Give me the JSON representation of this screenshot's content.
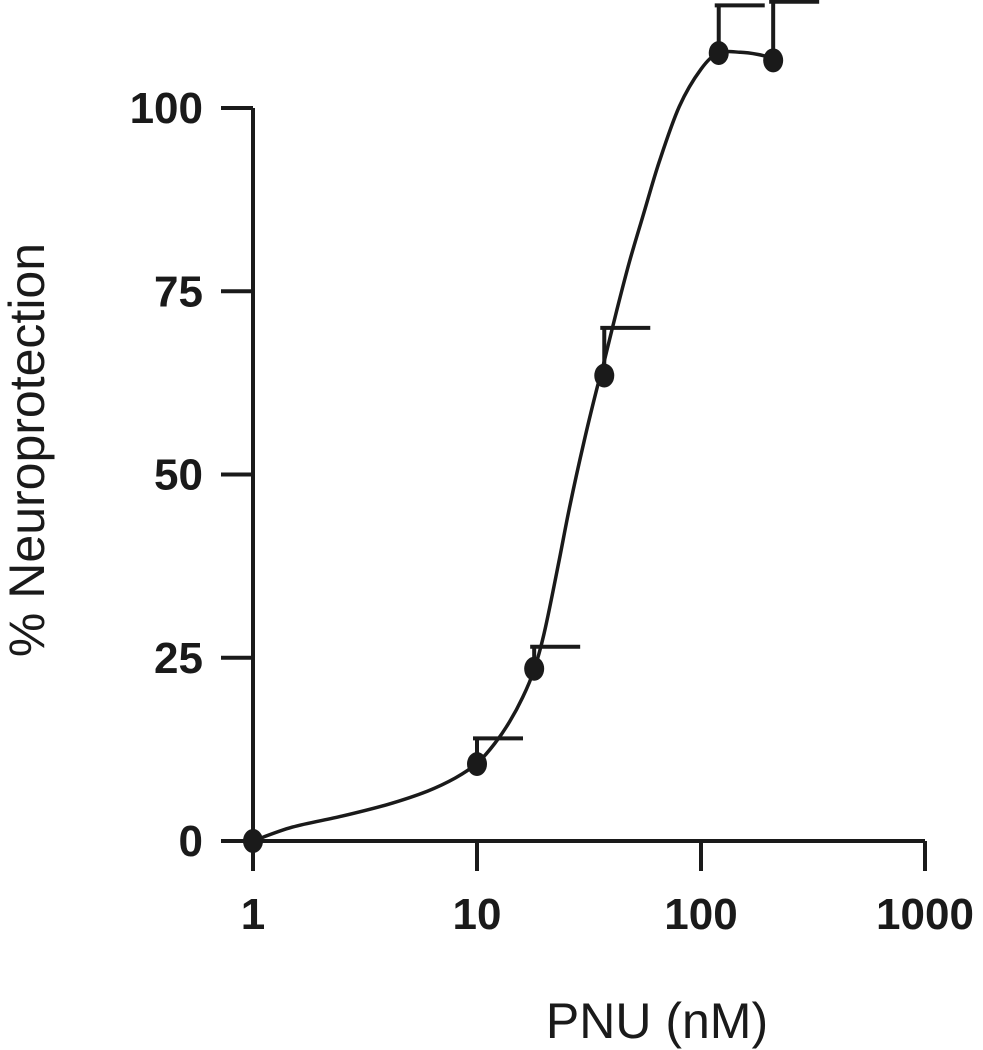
{
  "chart_data": {
    "type": "scatter",
    "xscale": "log",
    "xlim": [
      1,
      1000
    ],
    "ylim": [
      0,
      100
    ],
    "xlabel": "PNU (nM)",
    "ylabel": "% Neuroprotection",
    "xticks": [
      {
        "value": 1,
        "label": "1"
      },
      {
        "value": 10,
        "label": "10"
      },
      {
        "value": 100,
        "label": "100"
      },
      {
        "value": 1000,
        "label": "1000"
      }
    ],
    "yticks": [
      {
        "value": 0,
        "label": "0"
      },
      {
        "value": 25,
        "label": "25"
      },
      {
        "value": 50,
        "label": "50"
      },
      {
        "value": 75,
        "label": "75"
      },
      {
        "value": 100,
        "label": "100"
      }
    ],
    "points": [
      {
        "x": 1,
        "y": 0
      },
      {
        "x": 10,
        "y": 10.5,
        "err": 3.5
      },
      {
        "x": 18,
        "y": 23.5,
        "err": 3
      },
      {
        "x": 37,
        "y": 63.5,
        "err": 6.5
      },
      {
        "x": 120,
        "y": 107.5,
        "err": 6.5
      },
      {
        "x": 210,
        "y": 106.5,
        "err": 8
      }
    ],
    "fit_curve": [
      [
        1,
        0
      ],
      [
        1.5,
        1.9
      ],
      [
        2.5,
        3.4
      ],
      [
        4,
        5.0
      ],
      [
        6,
        6.8
      ],
      [
        8,
        8.6
      ],
      [
        10,
        10.6
      ],
      [
        12,
        13.3
      ],
      [
        14,
        16.3
      ],
      [
        16,
        19.6
      ],
      [
        18,
        23.4
      ],
      [
        20,
        28.5
      ],
      [
        23,
        37.5
      ],
      [
        26,
        45.8
      ],
      [
        30,
        54.4
      ],
      [
        34,
        61.3
      ],
      [
        37,
        65.5
      ],
      [
        42,
        72.3
      ],
      [
        48,
        79.1
      ],
      [
        55,
        85.2
      ],
      [
        65,
        92.6
      ],
      [
        80,
        100.2
      ],
      [
        100,
        105.3
      ],
      [
        120,
        107.5
      ],
      [
        150,
        107.6
      ],
      [
        180,
        107.3
      ],
      [
        210,
        106.8
      ]
    ],
    "grid": false,
    "legend": "none",
    "colors": {
      "ink": "#1a1a1a"
    }
  }
}
